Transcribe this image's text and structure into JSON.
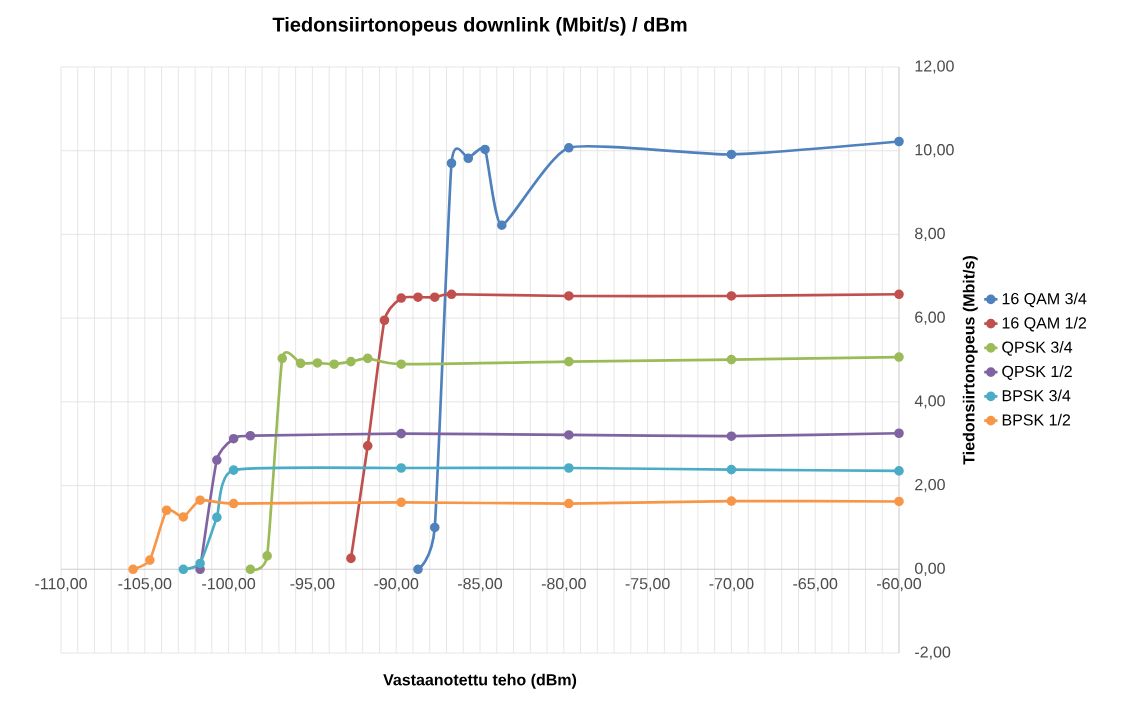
{
  "chart_data": {
    "type": "line",
    "title": "Tiedonsiirtonopeus downlink (Mbit/s) / dBm",
    "xlabel": "Vastaanotettu teho (dBm)",
    "ylabel": "Tiedonsiirtonopeus (Mbit/s)",
    "series": [
      {
        "name": "16 QAM 3/4",
        "color": "#4f81bd",
        "x": [
          -88.7,
          -87.7,
          -86.7,
          -85.7,
          -84.7,
          -83.7,
          -79.7,
          -70,
          -60
        ],
        "values": [
          0,
          1.0,
          9.7,
          9.82,
          10.03,
          8.22,
          10.07,
          9.91,
          10.22
        ]
      },
      {
        "name": "16 QAM 1/2",
        "color": "#c0504d",
        "x": [
          -92.7,
          -91.7,
          -90.7,
          -89.7,
          -88.7,
          -87.7,
          -86.7,
          -79.7,
          -70,
          -60
        ],
        "values": [
          0.26,
          2.95,
          5.95,
          6.48,
          6.5,
          6.5,
          6.57,
          6.53,
          6.53,
          6.57
        ]
      },
      {
        "name": "QPSK 3/4",
        "color": "#9bbb59",
        "x": [
          -98.7,
          -97.7,
          -96.8,
          -95.7,
          -94.7,
          -93.7,
          -92.7,
          -91.7,
          -89.7,
          -79.7,
          -70,
          -60
        ],
        "values": [
          0,
          0.32,
          5.04,
          4.92,
          4.93,
          4.9,
          4.96,
          5.04,
          4.9,
          4.96,
          5.01,
          5.07
        ]
      },
      {
        "name": "QPSK 1/2",
        "color": "#8064a2",
        "x": [
          -101.7,
          -100.7,
          -99.7,
          -98.7,
          -89.7,
          -79.7,
          -70,
          -60
        ],
        "values": [
          0,
          2.61,
          3.12,
          3.19,
          3.24,
          3.21,
          3.18,
          3.25
        ]
      },
      {
        "name": "BPSK 3/4",
        "color": "#4bacc6",
        "x": [
          -102.7,
          -101.7,
          -100.7,
          -99.7,
          -89.7,
          -79.7,
          -70,
          -60
        ],
        "values": [
          0,
          0.14,
          1.24,
          2.37,
          2.42,
          2.42,
          2.38,
          2.35
        ]
      },
      {
        "name": "BPSK 1/2",
        "color": "#f79646",
        "x": [
          -105.7,
          -104.7,
          -103.7,
          -102.7,
          -101.7,
          -99.7,
          -89.7,
          -79.7,
          -70,
          -60
        ],
        "values": [
          0,
          0.22,
          1.41,
          1.25,
          1.65,
          1.57,
          1.6,
          1.57,
          1.63,
          1.62
        ]
      }
    ],
    "xlim": [
      -110,
      -60
    ],
    "ylim": [
      -2,
      12
    ],
    "xticks": [
      {
        "value": -110,
        "label": "-110,00"
      },
      {
        "value": -109,
        "label": null
      },
      {
        "value": -108,
        "label": null
      },
      {
        "value": -107,
        "label": null
      },
      {
        "value": -106,
        "label": null
      },
      {
        "value": -105,
        "label": "-105,00"
      },
      {
        "value": -104,
        "label": null
      },
      {
        "value": -103,
        "label": null
      },
      {
        "value": -102,
        "label": null
      },
      {
        "value": -101,
        "label": null
      },
      {
        "value": -100,
        "label": "-100,00"
      },
      {
        "value": -99,
        "label": null
      },
      {
        "value": -98,
        "label": null
      },
      {
        "value": -97,
        "label": null
      },
      {
        "value": -96,
        "label": null
      },
      {
        "value": -95,
        "label": "-95,00"
      },
      {
        "value": -94,
        "label": null
      },
      {
        "value": -93,
        "label": null
      },
      {
        "value": -92,
        "label": null
      },
      {
        "value": -91,
        "label": null
      },
      {
        "value": -90,
        "label": "-90,00"
      },
      {
        "value": -89,
        "label": null
      },
      {
        "value": -88,
        "label": null
      },
      {
        "value": -87,
        "label": null
      },
      {
        "value": -86,
        "label": null
      },
      {
        "value": -85,
        "label": "-85,00"
      },
      {
        "value": -84,
        "label": null
      },
      {
        "value": -83,
        "label": null
      },
      {
        "value": -82,
        "label": null
      },
      {
        "value": -81,
        "label": null
      },
      {
        "value": -80,
        "label": "-80,00"
      },
      {
        "value": -79,
        "label": null
      },
      {
        "value": -78,
        "label": null
      },
      {
        "value": -77,
        "label": null
      },
      {
        "value": -76,
        "label": null
      },
      {
        "value": -75,
        "label": "-75,00"
      },
      {
        "value": -74,
        "label": null
      },
      {
        "value": -73,
        "label": null
      },
      {
        "value": -72,
        "label": null
      },
      {
        "value": -71,
        "label": null
      },
      {
        "value": -70,
        "label": "-70,00"
      },
      {
        "value": -69,
        "label": null
      },
      {
        "value": -68,
        "label": null
      },
      {
        "value": -67,
        "label": null
      },
      {
        "value": -66,
        "label": null
      },
      {
        "value": -65,
        "label": "-65,00"
      },
      {
        "value": -64,
        "label": null
      },
      {
        "value": -63,
        "label": null
      },
      {
        "value": -62,
        "label": null
      },
      {
        "value": -61,
        "label": null
      },
      {
        "value": -60,
        "label": "-60,00"
      }
    ],
    "yticks": [
      {
        "value": -2,
        "label": "-2,00"
      },
      {
        "value": 0,
        "label": "0,00"
      },
      {
        "value": 2,
        "label": "2,00"
      },
      {
        "value": 4,
        "label": "4,00"
      },
      {
        "value": 6,
        "label": "6,00"
      },
      {
        "value": 8,
        "label": "8,00"
      },
      {
        "value": 10,
        "label": "10,00"
      },
      {
        "value": 12,
        "label": "12,00"
      }
    ],
    "grid": true,
    "legend": "right",
    "marker": "circle",
    "line_style": "solid"
  }
}
